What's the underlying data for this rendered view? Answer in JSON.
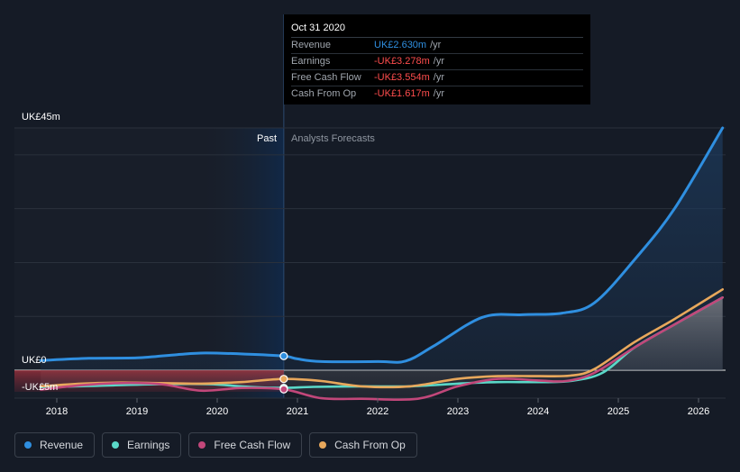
{
  "chart_data": {
    "type": "line",
    "y_top_label": "UK£45m",
    "y_zero_label": "UK£0",
    "y_neg_label": "-UK£5m",
    "ylim": [
      -5,
      45
    ],
    "x_ticks": [
      "2018",
      "2019",
      "2020",
      "2021",
      "2022",
      "2023",
      "2024",
      "2025",
      "2026"
    ],
    "past_label": "Past",
    "forecast_label": "Analysts Forecasts",
    "series": [
      {
        "name": "Revenue",
        "color": "#2f8fe0",
        "points": [
          [
            2017.8,
            1.8
          ],
          [
            2018.4,
            2.2
          ],
          [
            2019.0,
            2.3
          ],
          [
            2019.5,
            2.9
          ],
          [
            2019.85,
            3.2
          ],
          [
            2020.35,
            3.0
          ],
          [
            2020.83,
            2.63
          ],
          [
            2021.0,
            2.1
          ],
          [
            2021.3,
            1.6
          ],
          [
            2022.0,
            1.6
          ],
          [
            2022.35,
            1.7
          ],
          [
            2022.7,
            4.5
          ],
          [
            2023.3,
            9.8
          ],
          [
            2023.8,
            10.3
          ],
          [
            2024.3,
            10.6
          ],
          [
            2024.7,
            12.5
          ],
          [
            2025.2,
            20.5
          ],
          [
            2025.7,
            30
          ],
          [
            2026.3,
            45
          ]
        ]
      },
      {
        "name": "Earnings",
        "color": "#5ad8c8",
        "points": [
          [
            2017.8,
            -3.2
          ],
          [
            2018.5,
            -2.9
          ],
          [
            2019.3,
            -2.6
          ],
          [
            2019.9,
            -2.6
          ],
          [
            2020.4,
            -3.1
          ],
          [
            2020.83,
            -3.278
          ],
          [
            2021.2,
            -3.1
          ],
          [
            2021.8,
            -3.0
          ],
          [
            2022.4,
            -3.0
          ],
          [
            2023.0,
            -2.5
          ],
          [
            2023.5,
            -2.2
          ],
          [
            2024.0,
            -2.2
          ],
          [
            2024.4,
            -2.0
          ],
          [
            2024.8,
            -0.5
          ],
          [
            2025.2,
            4.2
          ],
          [
            2025.7,
            8.5
          ],
          [
            2026.3,
            13.5
          ]
        ]
      },
      {
        "name": "Free Cash Flow",
        "color": "#c2477a",
        "points": [
          [
            2017.8,
            -3.6
          ],
          [
            2018.3,
            -2.8
          ],
          [
            2018.8,
            -2.4
          ],
          [
            2019.3,
            -2.6
          ],
          [
            2019.8,
            -3.8
          ],
          [
            2020.3,
            -3.3
          ],
          [
            2020.83,
            -3.554
          ],
          [
            2021.3,
            -5.2
          ],
          [
            2021.8,
            -5.3
          ],
          [
            2022.5,
            -5.3
          ],
          [
            2023.0,
            -3.0
          ],
          [
            2023.5,
            -1.6
          ],
          [
            2024.0,
            -1.9
          ],
          [
            2024.35,
            -2.0
          ],
          [
            2024.7,
            -0.5
          ],
          [
            2025.2,
            4.2
          ],
          [
            2025.7,
            8.5
          ],
          [
            2026.3,
            13.5
          ]
        ]
      },
      {
        "name": "Cash From Op",
        "color": "#e8a85c",
        "points": [
          [
            2017.8,
            -3.0
          ],
          [
            2018.3,
            -2.5
          ],
          [
            2018.8,
            -2.3
          ],
          [
            2019.3,
            -2.4
          ],
          [
            2019.8,
            -2.5
          ],
          [
            2020.3,
            -2.2
          ],
          [
            2020.83,
            -1.617
          ],
          [
            2021.3,
            -2.0
          ],
          [
            2021.8,
            -3.0
          ],
          [
            2022.4,
            -3.0
          ],
          [
            2023.0,
            -1.6
          ],
          [
            2023.5,
            -1.1
          ],
          [
            2024.0,
            -1.1
          ],
          [
            2024.4,
            -1.0
          ],
          [
            2024.7,
            0.2
          ],
          [
            2025.2,
            5.2
          ],
          [
            2025.7,
            9.5
          ],
          [
            2026.3,
            15
          ]
        ]
      }
    ]
  },
  "tooltip": {
    "date": "Oct 31 2020",
    "unit": "/yr",
    "rows": [
      {
        "label": "Revenue",
        "value": "UK£2.630m",
        "color": "#2f8fe0"
      },
      {
        "label": "Earnings",
        "value": "-UK£3.278m",
        "color": "#ff4d4d"
      },
      {
        "label": "Free Cash Flow",
        "value": "-UK£3.554m",
        "color": "#ff4d4d"
      },
      {
        "label": "Cash From Op",
        "value": "-UK£1.617m",
        "color": "#ff4d4d"
      }
    ]
  },
  "legend": [
    {
      "label": "Revenue",
      "color": "#2f8fe0"
    },
    {
      "label": "Earnings",
      "color": "#5ad8c8"
    },
    {
      "label": "Free Cash Flow",
      "color": "#c2477a"
    },
    {
      "label": "Cash From Op",
      "color": "#e8a85c"
    }
  ]
}
